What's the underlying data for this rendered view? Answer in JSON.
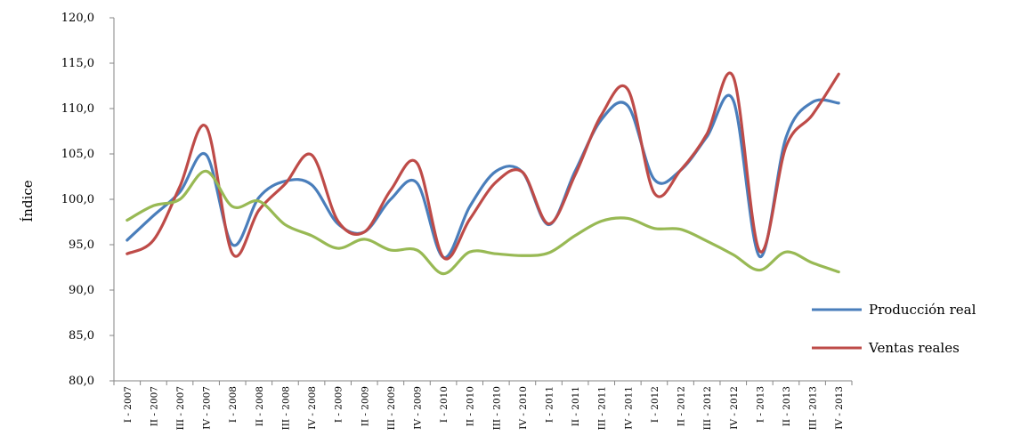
{
  "chart_data": {
    "type": "line",
    "ylabel": "Índice",
    "xlabel": "",
    "ylim": [
      80,
      120
    ],
    "yticks": [
      "80,0",
      "85,0",
      "90,0",
      "95,0",
      "100,0",
      "105,0",
      "110,0",
      "115,0",
      "120,0"
    ],
    "categories": [
      "I - 2007",
      "II - 2007",
      "III - 2007",
      "IV - 2007",
      "I - 2008",
      "II - 2008",
      "III - 2008",
      "IV - 2008",
      "I - 2009",
      "II - 2009",
      "III - 2009",
      "IV - 2009",
      "I - 2010",
      "II - 2010",
      "III - 2010",
      "IV - 2010",
      "I - 2011",
      "II - 2011",
      "III - 2011",
      "IV - 2011",
      "I - 2012",
      "II - 2012",
      "III - 2012",
      "IV - 2012",
      "I - 2013",
      "II - 2013",
      "III - 2013",
      "IV - 2013"
    ],
    "legend_position": "right",
    "grid": false,
    "series": [
      {
        "name": "Producción real",
        "color": "#4a7ebb",
        "values": [
          95.5,
          98.2,
          100.8,
          104.9,
          95.0,
          100.2,
          102.0,
          101.6,
          97.3,
          96.4,
          100.0,
          101.8,
          93.6,
          99.2,
          103.1,
          103.0,
          97.2,
          103.1,
          108.8,
          110.3,
          102.2,
          103.2,
          106.9,
          110.9,
          93.7,
          106.8,
          110.7,
          110.6
        ]
      },
      {
        "name": "Ventas reales",
        "color": "#be4b48",
        "values": [
          94.0,
          95.5,
          101.4,
          108.0,
          94.0,
          98.8,
          101.7,
          104.9,
          97.6,
          96.4,
          101.0,
          104.0,
          93.6,
          97.8,
          101.9,
          103.0,
          97.3,
          102.7,
          109.3,
          112.1,
          100.7,
          103.2,
          107.2,
          113.5,
          94.3,
          105.8,
          109.3,
          113.8
        ]
      },
      {
        "name": "",
        "color": "#98b954",
        "values": [
          97.7,
          99.3,
          100.0,
          103.1,
          99.2,
          99.8,
          97.2,
          96.0,
          94.6,
          95.6,
          94.4,
          94.4,
          91.8,
          94.2,
          94.0,
          93.8,
          94.1,
          96.0,
          97.6,
          97.9,
          96.8,
          96.7,
          95.4,
          93.9,
          92.2,
          94.2,
          93.0,
          92.0
        ]
      }
    ]
  }
}
